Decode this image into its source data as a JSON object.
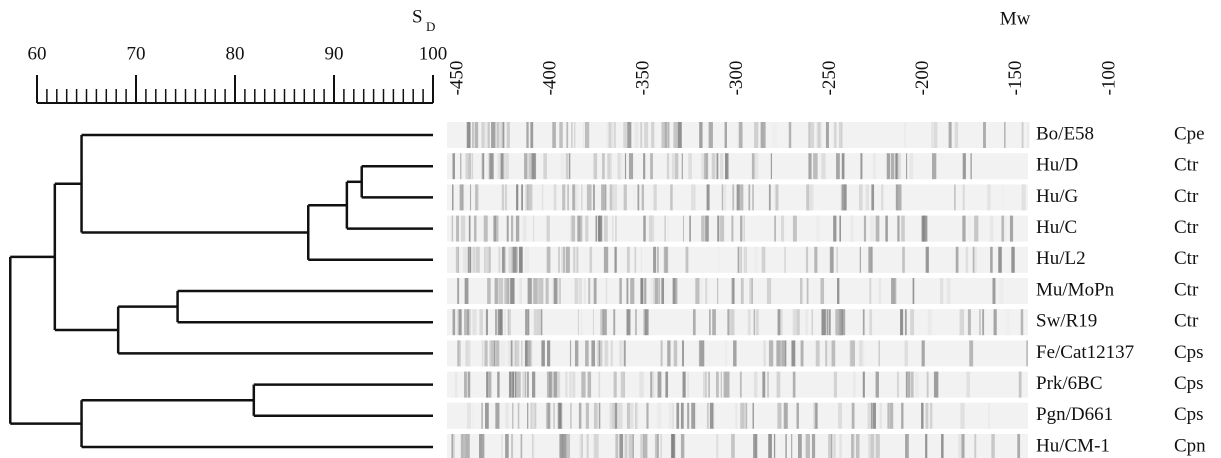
{
  "similarity_axis": {
    "label": "S",
    "label_subscript": "D",
    "lim": [
      60,
      100
    ],
    "ticks": [
      60,
      70,
      80,
      90,
      100
    ]
  },
  "mw_axis": {
    "label": "Mw",
    "ticks": [
      -450,
      -400,
      -350,
      -300,
      -250,
      -200,
      -150,
      -100
    ]
  },
  "dendrogram": {
    "similarity": 57.3,
    "children": [
      {
        "similarity": 61.8,
        "children": [
          {
            "similarity": 64.5,
            "children": [
              {
                "strain": "Bo/E58",
                "group": "Cpe"
              },
              {
                "similarity": 87.4,
                "children": [
                  {
                    "similarity": 91.3,
                    "children": [
                      {
                        "similarity": 92.8,
                        "children": [
                          {
                            "strain": "Hu/D",
                            "group": "Ctr"
                          },
                          {
                            "strain": "Hu/G",
                            "group": "Ctr"
                          }
                        ]
                      },
                      {
                        "strain": "Hu/C",
                        "group": "Ctr"
                      }
                    ]
                  },
                  {
                    "strain": "Hu/L2",
                    "group": "Ctr"
                  }
                ]
              }
            ]
          },
          {
            "similarity": 68.2,
            "children": [
              {
                "similarity": 74.2,
                "children": [
                  {
                    "strain": "Mu/MoPn",
                    "group": "Ctr"
                  },
                  {
                    "strain": "Sw/R19",
                    "group": "Ctr"
                  }
                ]
              },
              {
                "strain": "Fe/Cat12137",
                "group": "Cps"
              }
            ]
          }
        ]
      },
      {
        "similarity": 64.5,
        "children": [
          {
            "similarity": 81.9,
            "children": [
              {
                "strain": "Prk/6BC",
                "group": "Cps"
              },
              {
                "strain": "Pgn/D661",
                "group": "Cps"
              }
            ]
          },
          {
            "strain": "Hu/CM-1",
            "group": "Cpn"
          }
        ]
      }
    ]
  }
}
